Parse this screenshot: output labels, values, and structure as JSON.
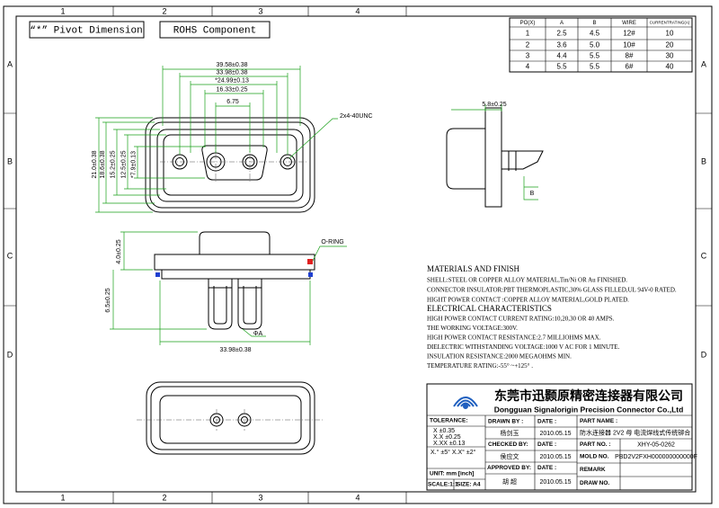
{
  "frame": {
    "columns": [
      "1",
      "2",
      "3",
      "4"
    ],
    "rows": [
      "A",
      "B",
      "C",
      "D"
    ]
  },
  "header": {
    "pivot_dimension": "“*” Pivot Dimension",
    "rohs": "ROHS Component"
  },
  "table": {
    "header": [
      "PO(X)",
      "A",
      "B",
      "WIRE",
      "CURRENTRATING(A)"
    ],
    "rows": [
      [
        "1",
        "2.5",
        "4.5",
        "12#",
        "10"
      ],
      [
        "2",
        "3.6",
        "5.0",
        "10#",
        "20"
      ],
      [
        "3",
        "4.4",
        "5.5",
        "8#",
        "30"
      ],
      [
        "4",
        "5.5",
        "5.5",
        "6#",
        "40"
      ]
    ]
  },
  "top_view": {
    "width_dims": [
      "39.58±0.38",
      "33.98±0.38",
      "*24.99±0.13",
      "16.33±0.25",
      "6.75"
    ],
    "height_dims": [
      "21.0±0.38",
      "18.6±0.38",
      "15.2±0.25",
      "12.5±0.25",
      "*7.9±0.13"
    ],
    "thread": "2x4-40UNC"
  },
  "side_view": {
    "flange": "5.8±0.25",
    "b": "B"
  },
  "front_view": {
    "height": "4.0±0.25",
    "o_ring": "O-RING",
    "pin_length": "6.5±0.25",
    "pin_dia": "ΦA",
    "width": "33.98±0.38"
  },
  "notes": {
    "materials_title": "MATERIALS AND  FINISH",
    "materials": [
      "SHELL:STEEL OR COPPER ALLOY MATERIAL,Tin/Ni OR Au FINISHED.",
      "CONNECTOR INSULATOR:PBT THERMOPLASTIC,30% GLASS FILLED,UL 94V-0 RATED.",
      "HIGHT POWER CONTACT :COPPER ALLOY MATERIAL,GOLD PLATED."
    ],
    "electrical_title": "ELECTRICAL CHARACTERISTICS",
    "electrical": [
      "HIGH POWER CONTACT CURRENT RATING:10,20,30 OR 40 AMPS.",
      "THE WORKING VOLTAGE:300V.",
      "HIGH POWER CONTACT RESISTANCE:2.7 MILLIOHMS MAX.",
      "DIELECTRIC WITHSTANDING VOLTAGE:1000 V AC FOR 1 MINUTE.",
      "INSULATION RESISTANCE:2000 MEGAOHMS MIN.",
      "TEMPERATURE RATING:-55° ~+125° ."
    ]
  },
  "title_block": {
    "company_cn": "东莞市迅颢原精密连接器有限公司",
    "company_en": "Dongguan Signalorigin Precision Connector Co.,Ltd",
    "tolerance": {
      "title": "TOLERANCE:",
      "lines": [
        "X       ±0.35",
        "X.X     ±0.25",
        "X.XX    ±0.13",
        "X.°  ±5°     X.X°  ±2°"
      ],
      "unit": "UNIT: mm [inch]",
      "scale": "SCALE:1:1",
      "size": "SIZE: A4"
    },
    "drawn_by": {
      "label": "DRAWN BY :",
      "name": "杨剑玉",
      "date_label": "DATE :",
      "date": "2010.05.15"
    },
    "checked_by": {
      "label": "CHECKED BY:",
      "name": "侯应文",
      "date_label": "DATE :",
      "date": "2010.05.15"
    },
    "approved_by": {
      "label": "APPROVED BY:",
      "name": "胡  超",
      "date_label": "DATE :",
      "date": "2010.05.15"
    },
    "part_name": {
      "label": "PART NAME :",
      "value": "防水连接器 2V2 母 电流焊线式传统铆合"
    },
    "part_no": {
      "label": "PART NO. :",
      "value": "XHY-05-0262"
    },
    "mold_no": {
      "label": "MOLD NO.",
      "value": "PBD2V2FXH000000000000F"
    },
    "remark": "REMARK",
    "draw_no": "DRAW NO."
  }
}
